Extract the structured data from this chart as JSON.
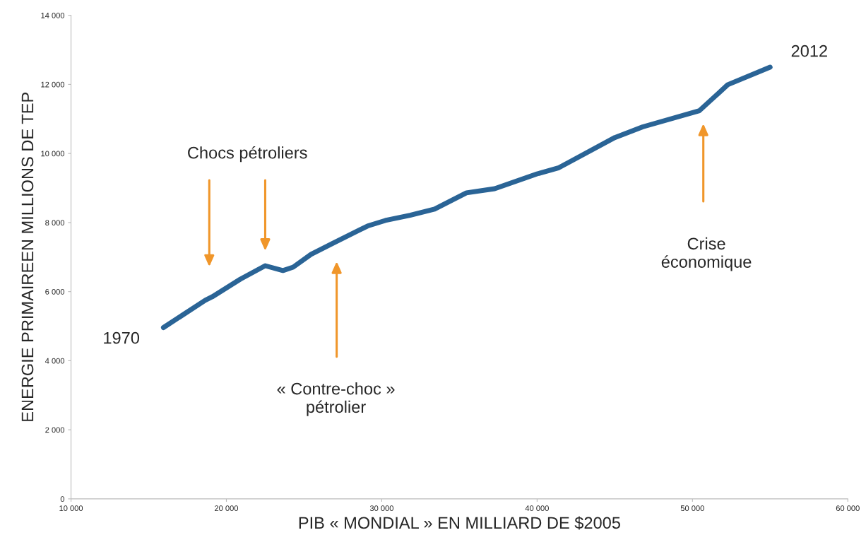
{
  "chart_data": {
    "type": "line",
    "xlabel": "PIB « MONDIAL » EN MILLIARD DE $2005",
    "ylabel": "ENERGIE PRIMAIREEN MILLIONS DE TEP",
    "x": [
      15950,
      18640,
      19090,
      20900,
      22500,
      23640,
      24300,
      25450,
      26820,
      29090,
      30230,
      31820,
      33400,
      35450,
      37270,
      40000,
      41360,
      42270,
      45000,
      46800,
      50450,
      52270,
      55000
    ],
    "series": [
      {
        "color": "#2a6496",
        "values": [
          4960,
          5750,
          5850,
          6360,
          6750,
          6610,
          6710,
          7080,
          7390,
          7900,
          8060,
          8210,
          8390,
          8860,
          8980,
          9410,
          9580,
          9800,
          10460,
          10770,
          11240,
          11990,
          12500
        ]
      }
    ],
    "xlim": [
      10000,
      60000
    ],
    "xticks": [
      {
        "value": 10000,
        "label": "10 000"
      },
      {
        "value": 20000,
        "label": "20 000"
      },
      {
        "value": 30000,
        "label": "30 000"
      },
      {
        "value": 40000,
        "label": "40 000"
      },
      {
        "value": 50000,
        "label": "50 000"
      },
      {
        "value": 60000,
        "label": "60 000"
      }
    ],
    "ylim": [
      0,
      14000
    ],
    "yticks": [
      0,
      {
        "value": 2000,
        "label": "2 000"
      },
      {
        "value": 4000,
        "label": "4 000"
      },
      {
        "value": 6000,
        "label": "6 000"
      },
      {
        "value": 8000,
        "label": "8 000"
      },
      {
        "value": 10000,
        "label": "10 000"
      },
      {
        "value": 12000,
        "label": "12 000"
      },
      {
        "value": 14000,
        "label": "14 000"
      }
    ],
    "grid": false,
    "legend": false,
    "annotations": [
      {
        "text": "1970",
        "x": 15950,
        "y": 4960
      },
      {
        "text": "2012",
        "x": 55000,
        "y": 12500
      },
      "Chocs pétroliers",
      "« Contre-choc »\npétrolier",
      "Crise\néconomique"
    ]
  }
}
